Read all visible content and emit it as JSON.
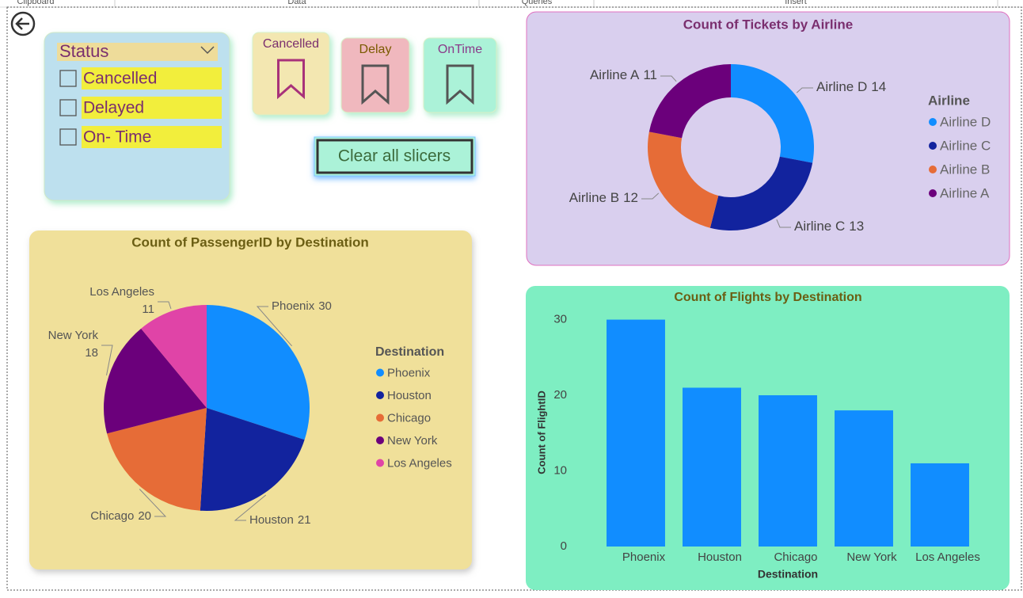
{
  "ribbon": [
    "Clipboard",
    "Data",
    "Queries",
    "Insert"
  ],
  "slicer": {
    "title": "Status",
    "items": [
      "Cancelled",
      "Delayed",
      "On- Time"
    ]
  },
  "bookmarks": [
    "Cancelled",
    "Delay",
    "OnTime"
  ],
  "button": "Clear all slicers",
  "chart_data": [
    {
      "type": "donut",
      "title": "Count of Tickets by Airline",
      "legend_title": "Airline",
      "categories": [
        "Airline D",
        "Airline C",
        "Airline B",
        "Airline A"
      ],
      "values": [
        14,
        13,
        12,
        11
      ],
      "colors": [
        "#118DFF",
        "#12239E",
        "#E66C37",
        "#6B007B"
      ],
      "legend": "right"
    },
    {
      "type": "pie",
      "title": "Count of PassengerID by Destination",
      "legend_title": "Destination",
      "categories": [
        "Phoenix",
        "Houston",
        "Chicago",
        "New York",
        "Los Angeles"
      ],
      "values": [
        30,
        21,
        20,
        18,
        11
      ],
      "colors": [
        "#118DFF",
        "#12239E",
        "#E66C37",
        "#6B007B",
        "#E044A7"
      ],
      "legend": "right"
    },
    {
      "type": "bar",
      "title": "Count of Flights by Destination",
      "x_label": "Destination",
      "y_label": "Count of FlightID",
      "categories": [
        "Phoenix",
        "Houston",
        "Chicago",
        "New York",
        "Los Angeles"
      ],
      "values": [
        30,
        21,
        20,
        18,
        11
      ],
      "color": "#118DFF",
      "ylim": [
        0,
        31
      ],
      "yticks": [
        0,
        10,
        20,
        30
      ],
      "grid": false
    }
  ]
}
